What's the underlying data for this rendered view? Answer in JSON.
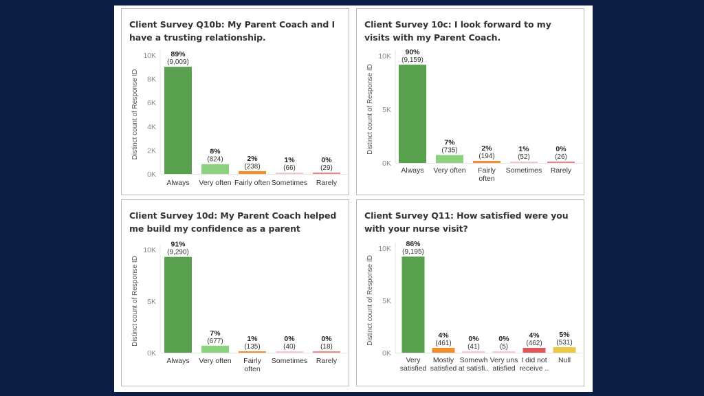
{
  "chart_data": [
    {
      "type": "bar",
      "title": "Client Survey Q10b: My Parent Coach and I have a trusting relationship.",
      "ylabel": "Distinct count of Response ID",
      "ylim": [
        0,
        10000
      ],
      "yticks": [
        0,
        2000,
        4000,
        6000,
        8000,
        10000
      ],
      "ytick_labels": [
        "0K",
        "2K",
        "4K",
        "6K",
        "8K",
        "10K"
      ],
      "categories": [
        [
          "Always"
        ],
        [
          "Very often"
        ],
        [
          "Fairly often"
        ],
        [
          "Sometimes"
        ],
        [
          "Rarely"
        ]
      ],
      "values": [
        9009,
        824,
        238,
        66,
        29
      ],
      "pct_labels": [
        "89%",
        "8%",
        "2%",
        "1%",
        "0%"
      ],
      "count_labels": [
        "(9,009)",
        "(824)",
        "(238)",
        "(66)",
        "(29)"
      ],
      "colors": [
        "#59a14f",
        "#8cd17d",
        "#f28e2b",
        "#f8c9c9",
        "#ee8a8a"
      ]
    },
    {
      "type": "bar",
      "title": "Client Survey 10c: I look forward to my visits with my Parent Coach.",
      "ylabel": "Distinct count of Response ID",
      "ylim": [
        0,
        10000
      ],
      "yticks": [
        0,
        5000,
        10000
      ],
      "ytick_labels": [
        "0K",
        "5K",
        "10K"
      ],
      "categories": [
        [
          "Always"
        ],
        [
          "Very often"
        ],
        [
          "Fairly",
          "often"
        ],
        [
          "Sometimes"
        ],
        [
          "Rarely"
        ]
      ],
      "values": [
        9159,
        735,
        194,
        52,
        26
      ],
      "pct_labels": [
        "90%",
        "7%",
        "2%",
        "1%",
        "0%"
      ],
      "count_labels": [
        "(9,159)",
        "(735)",
        "(194)",
        "(52)",
        "(26)"
      ],
      "colors": [
        "#59a14f",
        "#8cd17d",
        "#f28e2b",
        "#f8c9c9",
        "#ee8a8a"
      ]
    },
    {
      "type": "bar",
      "title": "Client Survey 10d: My Parent Coach helped me build my confidence as a parent",
      "ylabel": "Distinct count of Response ID",
      "ylim": [
        0,
        10000
      ],
      "yticks": [
        0,
        5000,
        10000
      ],
      "ytick_labels": [
        "0K",
        "5K",
        "10K"
      ],
      "categories": [
        [
          "Always"
        ],
        [
          "Very often"
        ],
        [
          "Fairly",
          "often"
        ],
        [
          "Sometimes"
        ],
        [
          "Rarely"
        ]
      ],
      "values": [
        9290,
        677,
        135,
        40,
        18
      ],
      "pct_labels": [
        "91%",
        "7%",
        "1%",
        "0%",
        "0%"
      ],
      "count_labels": [
        "(9,290)",
        "(677)",
        "(135)",
        "(40)",
        "(18)"
      ],
      "colors": [
        "#59a14f",
        "#8cd17d",
        "#f28e2b",
        "#f8c9c9",
        "#ee8a8a"
      ]
    },
    {
      "type": "bar",
      "title": "Client Survey Q11: How satisfied were you with your nurse visit?",
      "ylabel": "Distinct count of Response ID",
      "ylim": [
        0,
        10000
      ],
      "yticks": [
        0,
        5000,
        10000
      ],
      "ytick_labels": [
        "0K",
        "5K",
        "10K"
      ],
      "categories": [
        [
          "Very",
          "satisfied"
        ],
        [
          "Mostly",
          "satisfied"
        ],
        [
          "Somewh",
          "at satisfi.."
        ],
        [
          "Very uns",
          "atisfied"
        ],
        [
          "I did not",
          "receive .."
        ],
        [
          "Null"
        ]
      ],
      "values": [
        9195,
        461,
        41,
        5,
        462,
        531
      ],
      "pct_labels": [
        "86%",
        "4%",
        "0%",
        "0%",
        "4%",
        "5%"
      ],
      "count_labels": [
        "(9,195)",
        "(461)",
        "(41)",
        "(5)",
        "(462)",
        "(531)"
      ],
      "colors": [
        "#59a14f",
        "#f28e2b",
        "#f8c9c9",
        "#f8c9c9",
        "#e15759",
        "#edc948"
      ]
    }
  ]
}
